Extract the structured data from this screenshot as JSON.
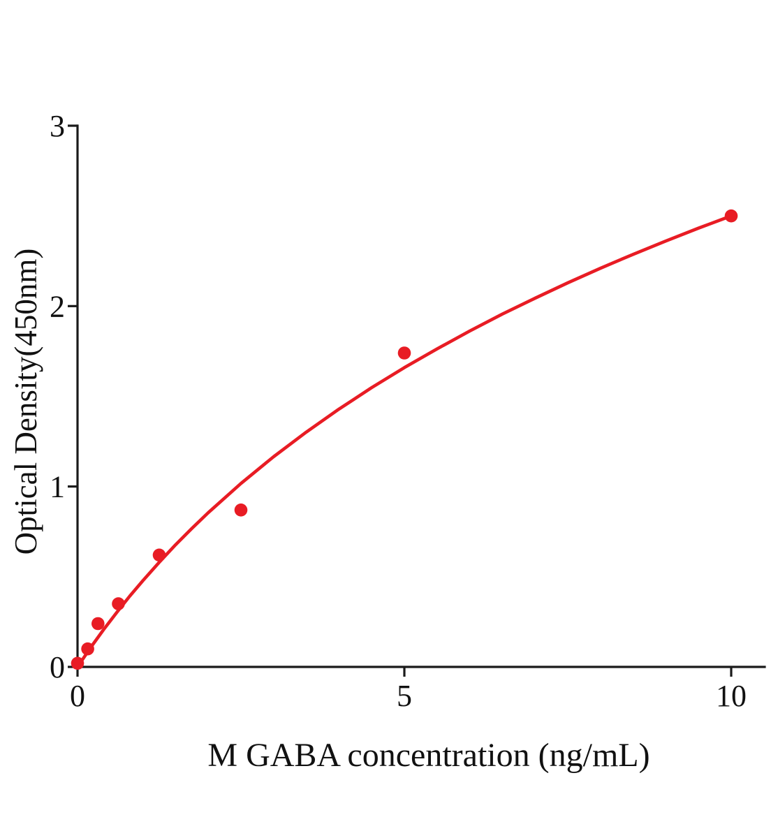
{
  "chart_data": {
    "type": "scatter",
    "title": "",
    "xlabel": "M GABA concentration (ng/mL)",
    "ylabel": "Optical Density(450nm)",
    "xlim": [
      0,
      10.5
    ],
    "ylim": [
      0,
      3
    ],
    "x_ticks": [
      0,
      5,
      10
    ],
    "y_ticks": [
      0,
      1,
      2,
      3
    ],
    "grid": false,
    "legend": false,
    "colors": {
      "points": "#e81c24",
      "fit_line": "#e81c24",
      "axis": "#1a1a1a",
      "text": "#111111",
      "background": "#ffffff"
    },
    "points": [
      [
        0,
        0.02
      ],
      [
        0.156,
        0.1
      ],
      [
        0.3125,
        0.24
      ],
      [
        0.625,
        0.35
      ],
      [
        1.25,
        0.62
      ],
      [
        2.5,
        0.87
      ],
      [
        5,
        1.74
      ],
      [
        10,
        2.5
      ]
    ],
    "fit_curve": [
      [
        0,
        0
      ],
      [
        0.2,
        0.107
      ],
      [
        0.4,
        0.207
      ],
      [
        0.6,
        0.302
      ],
      [
        0.8,
        0.393
      ],
      [
        1.0,
        0.478
      ],
      [
        1.25,
        0.58
      ],
      [
        1.5,
        0.677
      ],
      [
        1.75,
        0.768
      ],
      [
        2.0,
        0.855
      ],
      [
        2.5,
        1.017
      ],
      [
        3.0,
        1.165
      ],
      [
        3.5,
        1.302
      ],
      [
        4.0,
        1.429
      ],
      [
        4.5,
        1.548
      ],
      [
        5.0,
        1.659
      ],
      [
        5.5,
        1.763
      ],
      [
        6.0,
        1.862
      ],
      [
        6.5,
        1.956
      ],
      [
        7.0,
        2.044
      ],
      [
        7.5,
        2.129
      ],
      [
        8.0,
        2.21
      ],
      [
        8.5,
        2.287
      ],
      [
        9.0,
        2.361
      ],
      [
        9.5,
        2.432
      ],
      [
        10,
        2.5
      ]
    ]
  }
}
